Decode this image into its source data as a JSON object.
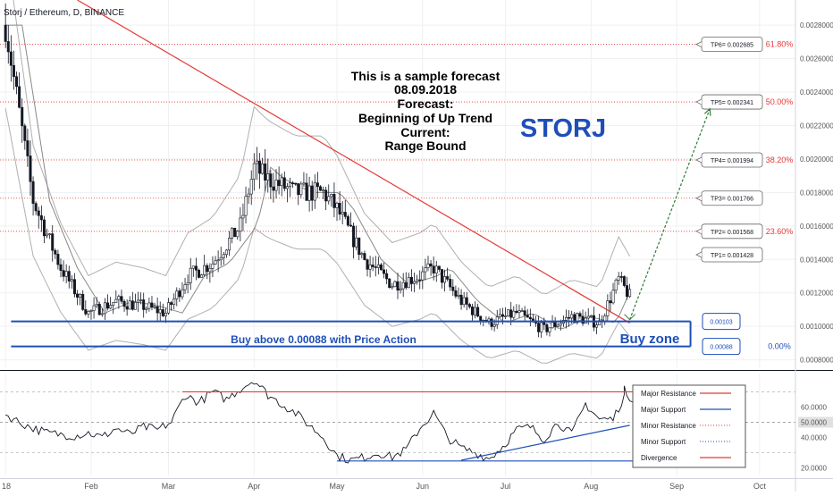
{
  "header": {
    "symbol_line": "Storj / Ethereum, D, BINANCE"
  },
  "annotation": {
    "lines": [
      "This is a sample forecast",
      "08.09.2018",
      "Forecast:",
      "Beginning of Up Trend",
      "Current:",
      "Range Bound"
    ],
    "ticker": "STORJ",
    "buy_zone": "Buy zone",
    "buy_above": "Buy above 0.00088 with Price Action"
  },
  "colors": {
    "up_candle": "#ffffff",
    "down_candle": "#131722",
    "trendline": "#e53935",
    "projection": "#2e7d32",
    "support": "#1e4fb8",
    "ticker": "#1e4fb8",
    "fib": "#e53935",
    "bands": "#b0b0b0",
    "oscillator": "#131722"
  },
  "chart_data": [
    {
      "type": "candlestick",
      "title": "Storj / Ethereum, D, BINANCE",
      "xlabel": "",
      "ylabel": "",
      "ylim": [
        0.00075,
        0.00295
      ],
      "y_tick_labels": [
        "0.0028000",
        "0.0026000",
        "0.0024000",
        "0.0022000",
        "0.0020000",
        "0.0018000",
        "0.0016000",
        "0.0014000",
        "0.0012000",
        "0.0010000",
        "0.0008000"
      ],
      "y_ticks": [
        0.0028,
        0.0026,
        0.0024,
        0.0022,
        0.002,
        0.0018,
        0.0016,
        0.0014,
        0.0012,
        0.001,
        0.0008
      ],
      "x_tick_labels": [
        "18",
        "Feb",
        "Mar",
        "Apr",
        "May",
        "Jun",
        "Jul",
        "Aug",
        "Sep",
        "Oct"
      ],
      "x_tick_days": [
        0,
        31,
        59,
        90,
        120,
        151,
        181,
        212,
        243,
        273
      ],
      "visible_day_range": [
        -2,
        286
      ],
      "grid": true,
      "candles_daily_close_approx": [
        [
          0,
          0.0028
        ],
        [
          10,
          0.00175
        ],
        [
          20,
          0.00135
        ],
        [
          30,
          0.00108
        ],
        [
          40,
          0.00115
        ],
        [
          50,
          0.00112
        ],
        [
          58,
          0.00108
        ],
        [
          66,
          0.0013
        ],
        [
          75,
          0.00138
        ],
        [
          85,
          0.0016
        ],
        [
          90,
          0.00195
        ],
        [
          95,
          0.00188
        ],
        [
          105,
          0.0018
        ],
        [
          115,
          0.0018
        ],
        [
          120,
          0.0017
        ],
        [
          130,
          0.0014
        ],
        [
          140,
          0.00125
        ],
        [
          150,
          0.0013
        ],
        [
          155,
          0.00135
        ],
        [
          165,
          0.00115
        ],
        [
          175,
          0.00102
        ],
        [
          185,
          0.00108
        ],
        [
          195,
          0.00098
        ],
        [
          205,
          0.00106
        ],
        [
          215,
          0.00102
        ],
        [
          222,
          0.00128
        ],
        [
          226,
          0.00118
        ]
      ],
      "target_levels": [
        {
          "label": "TP6= 0.002685",
          "value": 0.002685
        },
        {
          "label": "TP5= 0.002341",
          "value": 0.002341
        },
        {
          "label": "TP4= 0.001994",
          "value": 0.001994
        },
        {
          "label": "TP3= 0.001766",
          "value": 0.001766
        },
        {
          "label": "TP2= 0.001568",
          "value": 0.001568
        },
        {
          "label": "TP1= 0.001428",
          "value": 0.001428
        }
      ],
      "fib_levels": [
        {
          "label": "61.80%",
          "value": 0.002685
        },
        {
          "label": "50.00%",
          "value": 0.002341
        },
        {
          "label": "38.20%",
          "value": 0.001994
        },
        {
          "label": "23.60%",
          "value": 0.001568
        },
        {
          "label": "0.00%",
          "value": 0.00088
        }
      ],
      "buy_zone": {
        "upper_label": "0.00103",
        "upper": 0.00103,
        "lower_label": "0.00088",
        "lower": 0.00088
      },
      "descending_trendline": [
        [
          26,
          0.00295
        ],
        [
          226,
          0.00102
        ]
      ],
      "projection_arrow": [
        [
          226,
          0.00104
        ],
        [
          255,
          0.0023
        ]
      ]
    },
    {
      "type": "line",
      "title": "",
      "ylim": [
        15,
        82
      ],
      "y_tick_labels": [
        "60.0000",
        "50.0000",
        "40.0000",
        "20.0000"
      ],
      "y_ticks": [
        60,
        50,
        40,
        20
      ],
      "grid": true,
      "series": [
        {
          "values": [
            [
              0,
              55
            ],
            [
              5,
              50
            ],
            [
              10,
              46
            ],
            [
              15,
              43
            ],
            [
              20,
              42
            ],
            [
              25,
              41
            ],
            [
              30,
              43
            ],
            [
              35,
              40
            ],
            [
              40,
              46
            ],
            [
              45,
              42
            ],
            [
              50,
              47
            ],
            [
              55,
              45
            ],
            [
              60,
              50
            ],
            [
              65,
              68
            ],
            [
              70,
              63
            ],
            [
              75,
              70
            ],
            [
              80,
              65
            ],
            [
              85,
              72
            ],
            [
              90,
              78
            ],
            [
              95,
              68
            ],
            [
              100,
              62
            ],
            [
              105,
              56
            ],
            [
              110,
              48
            ],
            [
              115,
              40
            ],
            [
              120,
              28
            ],
            [
              125,
              25
            ],
            [
              130,
              27
            ],
            [
              135,
              30
            ],
            [
              140,
              27
            ],
            [
              145,
              32
            ],
            [
              150,
              46
            ],
            [
              155,
              56
            ],
            [
              160,
              40
            ],
            [
              165,
              33
            ],
            [
              170,
              30
            ],
            [
              175,
              26
            ],
            [
              180,
              34
            ],
            [
              185,
              45
            ],
            [
              190,
              47
            ],
            [
              195,
              39
            ],
            [
              200,
              50
            ],
            [
              205,
              42
            ],
            [
              210,
              62
            ],
            [
              215,
              52
            ],
            [
              220,
              52
            ],
            [
              224,
              71
            ],
            [
              227,
              61
            ]
          ]
        }
      ],
      "reference_lines": [
        {
          "name": "Major Resistance",
          "value": 70
        },
        {
          "name": "Major Support",
          "value": 24.5
        }
      ],
      "rising_support": [
        [
          165,
          25
        ],
        [
          226,
          48
        ]
      ],
      "legend": {
        "placement": "right",
        "entries": [
          "Major Resistance",
          "Major Support",
          "Minor Resistance",
          "Minor Support",
          "Divergence"
        ]
      }
    }
  ]
}
